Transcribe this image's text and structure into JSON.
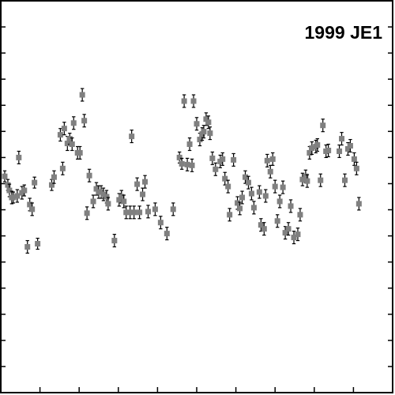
{
  "chart_data": {
    "type": "scatter",
    "title": "1999 JE1",
    "xlabel": "",
    "ylabel": "",
    "xlim": [
      0,
      1
    ],
    "ylim": [
      1,
      0
    ],
    "x_ticks": [
      0.0,
      0.1,
      0.2,
      0.3,
      0.4,
      0.5,
      0.6,
      0.7,
      0.8,
      0.9,
      1.0
    ],
    "y_ticks": [
      0.0,
      0.0667,
      0.1333,
      0.2,
      0.2667,
      0.3333,
      0.4,
      0.4667,
      0.5333,
      0.6,
      0.6667,
      0.7333,
      0.8,
      0.8667,
      0.9333,
      1.0
    ],
    "grid": false,
    "legend": "none",
    "colors": {
      "marker": "#808080",
      "errorbar": "#000000",
      "frame": "#000000"
    },
    "series": [
      {
        "points": [
          {
            "x": 0.01,
            "y": 0.448,
            "e": 0.014
          },
          {
            "x": 0.018,
            "y": 0.47,
            "e": 0.014
          },
          {
            "x": 0.022,
            "y": 0.484,
            "e": 0.016
          },
          {
            "x": 0.028,
            "y": 0.502,
            "e": 0.016
          },
          {
            "x": 0.032,
            "y": 0.502,
            "e": 0.014
          },
          {
            "x": 0.042,
            "y": 0.498,
            "e": 0.016
          },
          {
            "x": 0.046,
            "y": 0.4,
            "e": 0.016
          },
          {
            "x": 0.054,
            "y": 0.49,
            "e": 0.016
          },
          {
            "x": 0.06,
            "y": 0.484,
            "e": 0.014
          },
          {
            "x": 0.068,
            "y": 0.628,
            "e": 0.016
          },
          {
            "x": 0.074,
            "y": 0.52,
            "e": 0.016
          },
          {
            "x": 0.08,
            "y": 0.532,
            "e": 0.016
          },
          {
            "x": 0.086,
            "y": 0.464,
            "e": 0.014
          },
          {
            "x": 0.094,
            "y": 0.62,
            "e": 0.014
          },
          {
            "x": 0.13,
            "y": 0.47,
            "e": 0.014
          },
          {
            "x": 0.136,
            "y": 0.45,
            "e": 0.016
          },
          {
            "x": 0.152,
            "y": 0.342,
            "e": 0.016
          },
          {
            "x": 0.158,
            "y": 0.428,
            "e": 0.016
          },
          {
            "x": 0.162,
            "y": 0.326,
            "e": 0.016
          },
          {
            "x": 0.17,
            "y": 0.364,
            "e": 0.018
          },
          {
            "x": 0.176,
            "y": 0.352,
            "e": 0.014
          },
          {
            "x": 0.182,
            "y": 0.366,
            "e": 0.016
          },
          {
            "x": 0.186,
            "y": 0.312,
            "e": 0.016
          },
          {
            "x": 0.196,
            "y": 0.388,
            "e": 0.016
          },
          {
            "x": 0.202,
            "y": 0.388,
            "e": 0.016
          },
          {
            "x": 0.208,
            "y": 0.24,
            "e": 0.016
          },
          {
            "x": 0.213,
            "y": 0.306,
            "e": 0.016
          },
          {
            "x": 0.22,
            "y": 0.542,
            "e": 0.016
          },
          {
            "x": 0.226,
            "y": 0.446,
            "e": 0.016
          },
          {
            "x": 0.236,
            "y": 0.512,
            "e": 0.016
          },
          {
            "x": 0.244,
            "y": 0.48,
            "e": 0.016
          },
          {
            "x": 0.25,
            "y": 0.488,
            "e": 0.016
          },
          {
            "x": 0.256,
            "y": 0.488,
            "e": 0.016
          },
          {
            "x": 0.262,
            "y": 0.494,
            "e": 0.016
          },
          {
            "x": 0.27,
            "y": 0.5,
            "e": 0.016
          },
          {
            "x": 0.274,
            "y": 0.518,
            "e": 0.016
          },
          {
            "x": 0.29,
            "y": 0.612,
            "e": 0.016
          },
          {
            "x": 0.302,
            "y": 0.508,
            "e": 0.016
          },
          {
            "x": 0.308,
            "y": 0.5,
            "e": 0.016
          },
          {
            "x": 0.314,
            "y": 0.512,
            "e": 0.016
          },
          {
            "x": 0.32,
            "y": 0.54,
            "e": 0.016
          },
          {
            "x": 0.33,
            "y": 0.54,
            "e": 0.016
          },
          {
            "x": 0.334,
            "y": 0.346,
            "e": 0.016
          },
          {
            "x": 0.34,
            "y": 0.54,
            "e": 0.016
          },
          {
            "x": 0.348,
            "y": 0.468,
            "e": 0.016
          },
          {
            "x": 0.354,
            "y": 0.54,
            "e": 0.016
          },
          {
            "x": 0.362,
            "y": 0.494,
            "e": 0.016
          },
          {
            "x": 0.368,
            "y": 0.462,
            "e": 0.016
          },
          {
            "x": 0.376,
            "y": 0.538,
            "e": 0.016
          },
          {
            "x": 0.394,
            "y": 0.532,
            "e": 0.016
          },
          {
            "x": 0.408,
            "y": 0.566,
            "e": 0.016
          },
          {
            "x": 0.424,
            "y": 0.594,
            "e": 0.016
          },
          {
            "x": 0.44,
            "y": 0.532,
            "e": 0.016
          },
          {
            "x": 0.456,
            "y": 0.4,
            "e": 0.014
          },
          {
            "x": 0.462,
            "y": 0.416,
            "e": 0.014
          },
          {
            "x": 0.468,
            "y": 0.256,
            "e": 0.016
          },
          {
            "x": 0.476,
            "y": 0.418,
            "e": 0.016
          },
          {
            "x": 0.482,
            "y": 0.366,
            "e": 0.016
          },
          {
            "x": 0.488,
            "y": 0.42,
            "e": 0.016
          },
          {
            "x": 0.492,
            "y": 0.256,
            "e": 0.016
          },
          {
            "x": 0.5,
            "y": 0.314,
            "e": 0.016
          },
          {
            "x": 0.508,
            "y": 0.354,
            "e": 0.016
          },
          {
            "x": 0.514,
            "y": 0.34,
            "e": 0.016
          },
          {
            "x": 0.518,
            "y": 0.334,
            "e": 0.016
          },
          {
            "x": 0.524,
            "y": 0.302,
            "e": 0.016
          },
          {
            "x": 0.53,
            "y": 0.31,
            "e": 0.016
          },
          {
            "x": 0.534,
            "y": 0.338,
            "e": 0.016
          },
          {
            "x": 0.54,
            "y": 0.402,
            "e": 0.016
          },
          {
            "x": 0.548,
            "y": 0.43,
            "e": 0.016
          },
          {
            "x": 0.56,
            "y": 0.41,
            "e": 0.016
          },
          {
            "x": 0.566,
            "y": 0.404,
            "e": 0.016
          },
          {
            "x": 0.572,
            "y": 0.454,
            "e": 0.016
          },
          {
            "x": 0.58,
            "y": 0.474,
            "e": 0.016
          },
          {
            "x": 0.584,
            "y": 0.546,
            "e": 0.016
          },
          {
            "x": 0.594,
            "y": 0.406,
            "e": 0.016
          },
          {
            "x": 0.604,
            "y": 0.516,
            "e": 0.016
          },
          {
            "x": 0.61,
            "y": 0.53,
            "e": 0.016
          },
          {
            "x": 0.616,
            "y": 0.502,
            "e": 0.016
          },
          {
            "x": 0.624,
            "y": 0.45,
            "e": 0.016
          },
          {
            "x": 0.632,
            "y": 0.464,
            "e": 0.016
          },
          {
            "x": 0.64,
            "y": 0.492,
            "e": 0.016
          },
          {
            "x": 0.646,
            "y": 0.528,
            "e": 0.016
          },
          {
            "x": 0.66,
            "y": 0.488,
            "e": 0.016
          },
          {
            "x": 0.664,
            "y": 0.572,
            "e": 0.016
          },
          {
            "x": 0.672,
            "y": 0.582,
            "e": 0.016
          },
          {
            "x": 0.676,
            "y": 0.498,
            "e": 0.016
          },
          {
            "x": 0.68,
            "y": 0.408,
            "e": 0.016
          },
          {
            "x": 0.688,
            "y": 0.436,
            "e": 0.016
          },
          {
            "x": 0.694,
            "y": 0.404,
            "e": 0.016
          },
          {
            "x": 0.7,
            "y": 0.474,
            "e": 0.016
          },
          {
            "x": 0.706,
            "y": 0.562,
            "e": 0.016
          },
          {
            "x": 0.712,
            "y": 0.512,
            "e": 0.016
          },
          {
            "x": 0.72,
            "y": 0.476,
            "e": 0.016
          },
          {
            "x": 0.726,
            "y": 0.592,
            "e": 0.016
          },
          {
            "x": 0.734,
            "y": 0.582,
            "e": 0.016
          },
          {
            "x": 0.74,
            "y": 0.524,
            "e": 0.016
          },
          {
            "x": 0.748,
            "y": 0.604,
            "e": 0.016
          },
          {
            "x": 0.758,
            "y": 0.596,
            "e": 0.016
          },
          {
            "x": 0.764,
            "y": 0.546,
            "e": 0.016
          },
          {
            "x": 0.77,
            "y": 0.456,
            "e": 0.016
          },
          {
            "x": 0.778,
            "y": 0.448,
            "e": 0.016
          },
          {
            "x": 0.782,
            "y": 0.46,
            "e": 0.016
          },
          {
            "x": 0.788,
            "y": 0.388,
            "e": 0.016
          },
          {
            "x": 0.794,
            "y": 0.376,
            "e": 0.016
          },
          {
            "x": 0.804,
            "y": 0.372,
            "e": 0.016
          },
          {
            "x": 0.808,
            "y": 0.368,
            "e": 0.016
          },
          {
            "x": 0.816,
            "y": 0.458,
            "e": 0.016
          },
          {
            "x": 0.822,
            "y": 0.318,
            "e": 0.016
          },
          {
            "x": 0.83,
            "y": 0.384,
            "e": 0.016
          },
          {
            "x": 0.836,
            "y": 0.382,
            "e": 0.016
          },
          {
            "x": 0.864,
            "y": 0.384,
            "e": 0.016
          },
          {
            "x": 0.87,
            "y": 0.352,
            "e": 0.016
          },
          {
            "x": 0.878,
            "y": 0.458,
            "e": 0.016
          },
          {
            "x": 0.886,
            "y": 0.378,
            "e": 0.016
          },
          {
            "x": 0.892,
            "y": 0.37,
            "e": 0.016
          },
          {
            "x": 0.902,
            "y": 0.404,
            "e": 0.016
          },
          {
            "x": 0.908,
            "y": 0.428,
            "e": 0.016
          },
          {
            "x": 0.914,
            "y": 0.518,
            "e": 0.016
          }
        ]
      }
    ]
  }
}
